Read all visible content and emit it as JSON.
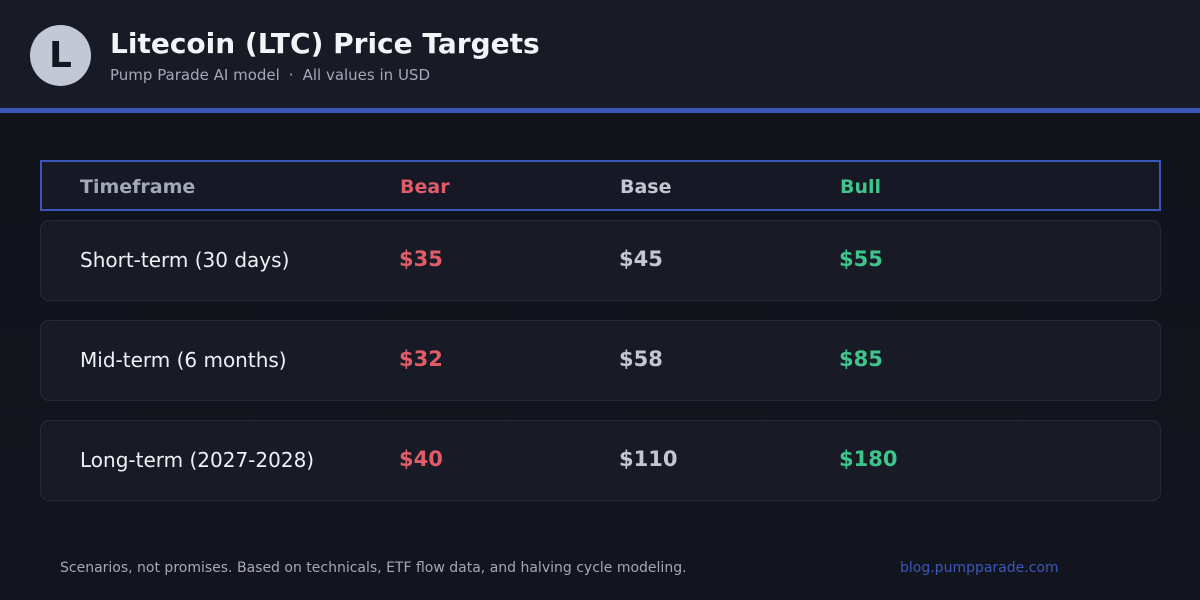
{
  "header": {
    "logo_letter": "L",
    "title": "Litecoin (LTC) Price Targets",
    "subtitle_source": "Pump Parade AI model",
    "subtitle_separator": "·",
    "subtitle_units": "All values in USD"
  },
  "colors": {
    "accent": "#3a56b8",
    "bear": "#e05c68",
    "base": "#c3c7d3",
    "bull": "#3fc48b"
  },
  "table": {
    "headers": {
      "timeframe": "Timeframe",
      "bear": "Bear",
      "base": "Base",
      "bull": "Bull"
    },
    "rows": [
      {
        "timeframe": "Short-term (30 days)",
        "bear": "$35",
        "base": "$45",
        "bull": "$55"
      },
      {
        "timeframe": "Mid-term (6 months)",
        "bear": "$32",
        "base": "$58",
        "bull": "$85"
      },
      {
        "timeframe": "Long-term (2027-2028)",
        "bear": "$40",
        "base": "$110",
        "bull": "$180"
      }
    ]
  },
  "footer": {
    "note": "Scenarios, not promises. Based on technicals, ETF flow data, and halving cycle modeling.",
    "link": "blog.pumpparade.com"
  }
}
